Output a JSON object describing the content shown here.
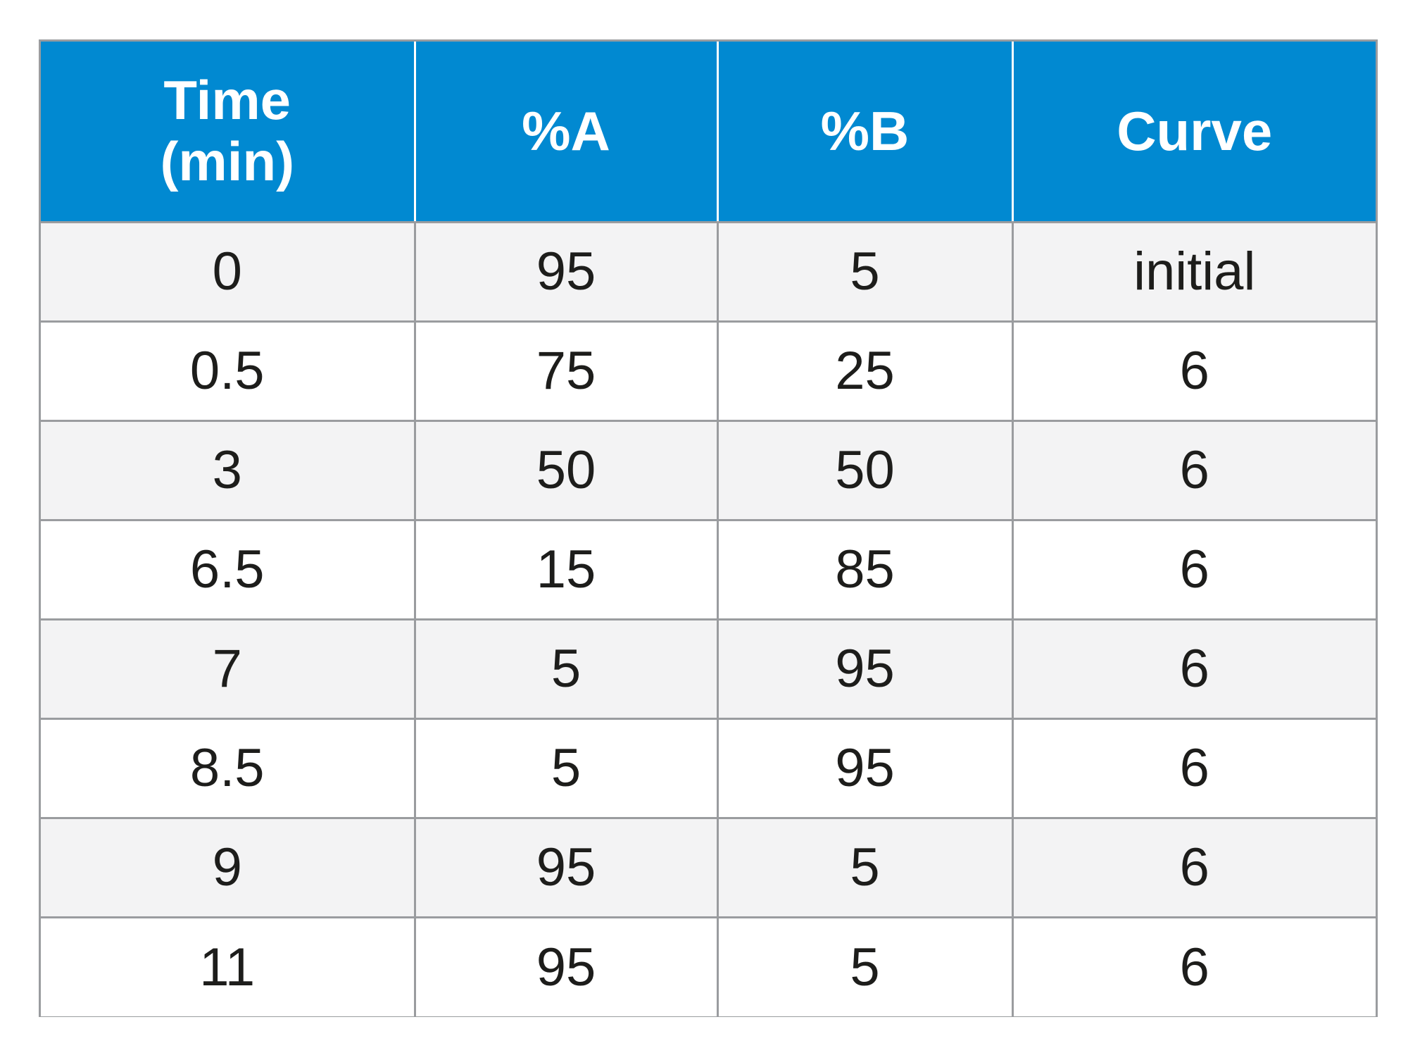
{
  "table": {
    "headers": {
      "time_line1": "Time",
      "time_line2": "(min)",
      "percent_a": "%A",
      "percent_b": "%B",
      "curve": "Curve"
    },
    "rows": [
      {
        "time": "0",
        "a": "95",
        "b": "5",
        "curve": "initial"
      },
      {
        "time": "0.5",
        "a": "75",
        "b": "25",
        "curve": "6"
      },
      {
        "time": "3",
        "a": "50",
        "b": "50",
        "curve": "6"
      },
      {
        "time": "6.5",
        "a": "15",
        "b": "85",
        "curve": "6"
      },
      {
        "time": "7",
        "a": "5",
        "b": "95",
        "curve": "6"
      },
      {
        "time": "8.5",
        "a": "5",
        "b": "95",
        "curve": "6"
      },
      {
        "time": "9",
        "a": "95",
        "b": "5",
        "curve": "6"
      },
      {
        "time": "11",
        "a": "95",
        "b": "5",
        "curve": "6"
      }
    ],
    "colors": {
      "header_bg": "#0189d1",
      "header_text": "#ffffff",
      "stripe_bg": "#f3f3f4",
      "border": "#9a9c9f",
      "cell_text": "#1d1d1b"
    }
  }
}
